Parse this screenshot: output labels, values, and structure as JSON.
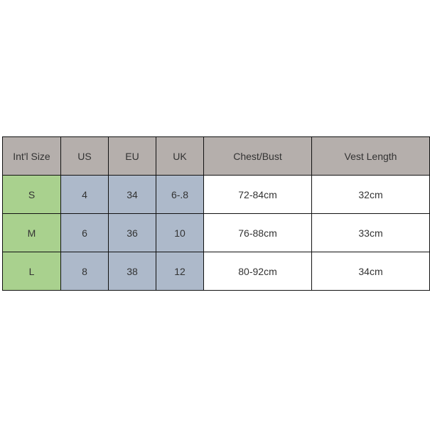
{
  "headers": [
    "Int'l Size",
    "US",
    "EU",
    "UK",
    "Chest/Bust",
    "Vest Length"
  ],
  "rows": [
    [
      "S",
      "4",
      "34",
      "6-.8",
      "72-84cm",
      "32cm"
    ],
    [
      "M",
      "6",
      "36",
      "10",
      "76-88cm",
      "33cm"
    ],
    [
      "L",
      "8",
      "38",
      "12",
      "80-92cm",
      "34cm"
    ]
  ],
  "colors": {
    "header": "#b5afac",
    "size": "#a9d18e",
    "conversion": "#adb9ca"
  }
}
